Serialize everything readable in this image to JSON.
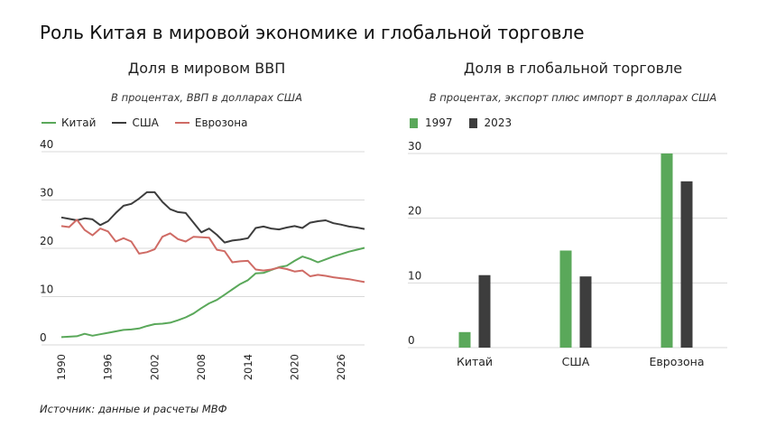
{
  "title": "Роль Китая в мировой экономике и глобальной торговле",
  "source": "Источник: данные и расчеты МВФ",
  "colors": {
    "china": "#5aa85a",
    "usa": "#3d3d3d",
    "eurozone": "#cf6b65",
    "grid": "#d9d9d9"
  },
  "chart_data": [
    {
      "type": "line",
      "title": "Доля в мировом ВВП",
      "subtitle": "В процентах, ВВП в долларах США",
      "xlabel": "",
      "ylabel": "",
      "xlim": [
        1990,
        2029
      ],
      "ylim": [
        0,
        40
      ],
      "yticks": [
        "0",
        "10",
        "20",
        "30",
        "40"
      ],
      "xticks": [
        "1990",
        "1996",
        "2002",
        "2008",
        "2014",
        "2020",
        "2026"
      ],
      "legend_position": "top-left",
      "grid": true,
      "x": [
        1990,
        1991,
        1992,
        1993,
        1994,
        1995,
        1996,
        1997,
        1998,
        1999,
        2000,
        2001,
        2002,
        2003,
        2004,
        2005,
        2006,
        2007,
        2008,
        2009,
        2010,
        2011,
        2012,
        2013,
        2014,
        2015,
        2016,
        2017,
        2018,
        2019,
        2020,
        2021,
        2022,
        2023,
        2024,
        2025,
        2026,
        2027,
        2028,
        2029
      ],
      "series": [
        {
          "name": "Китай",
          "color": "#5aa85a",
          "values": [
            1.6,
            1.7,
            1.8,
            2.3,
            1.9,
            2.2,
            2.5,
            2.8,
            3.1,
            3.2,
            3.4,
            3.9,
            4.3,
            4.4,
            4.6,
            5.1,
            5.7,
            6.5,
            7.6,
            8.6,
            9.3,
            10.4,
            11.5,
            12.6,
            13.4,
            14.8,
            14.9,
            15.5,
            16.1,
            16.4,
            17.4,
            18.3,
            17.8,
            17.1,
            17.7,
            18.3,
            18.8,
            19.3,
            19.7,
            20.1
          ]
        },
        {
          "name": "США",
          "color": "#3d3d3d",
          "values": [
            26.4,
            26.1,
            25.8,
            26.2,
            26.0,
            24.8,
            25.6,
            27.3,
            28.8,
            29.2,
            30.3,
            31.6,
            31.6,
            29.6,
            28.1,
            27.5,
            27.3,
            25.3,
            23.3,
            24.1,
            22.8,
            21.2,
            21.6,
            21.8,
            22.1,
            24.2,
            24.5,
            24.1,
            23.9,
            24.3,
            24.6,
            24.2,
            25.3,
            25.6,
            25.8,
            25.2,
            24.9,
            24.5,
            24.3,
            24.0
          ]
        },
        {
          "name": "Еврозона",
          "color": "#cf6b65",
          "values": [
            24.6,
            24.4,
            25.9,
            23.8,
            22.7,
            24.1,
            23.5,
            21.4,
            22.1,
            21.4,
            18.9,
            19.2,
            19.8,
            22.4,
            23.1,
            21.9,
            21.4,
            22.4,
            22.3,
            22.2,
            19.7,
            19.4,
            17.1,
            17.3,
            17.4,
            15.6,
            15.4,
            15.6,
            16.0,
            15.7,
            15.2,
            15.4,
            14.2,
            14.5,
            14.3,
            14.0,
            13.8,
            13.6,
            13.3,
            13.0
          ]
        }
      ]
    },
    {
      "type": "bar",
      "title": "Доля в глобальной торговле",
      "subtitle": "В процентах, экспорт плюс импорт в долларах США",
      "xlabel": "",
      "ylabel": "",
      "ylim": [
        0,
        30
      ],
      "yticks": [
        "0",
        "10",
        "20",
        "30"
      ],
      "legend_position": "top-left",
      "grid": true,
      "categories": [
        "Китай",
        "США",
        "Еврозона"
      ],
      "series": [
        {
          "name": "1997",
          "color": "#5aa85a",
          "values": [
            2.4,
            15.0,
            30.0
          ]
        },
        {
          "name": "2023",
          "color": "#3d3d3d",
          "values": [
            11.2,
            11.0,
            25.7
          ]
        }
      ]
    }
  ]
}
